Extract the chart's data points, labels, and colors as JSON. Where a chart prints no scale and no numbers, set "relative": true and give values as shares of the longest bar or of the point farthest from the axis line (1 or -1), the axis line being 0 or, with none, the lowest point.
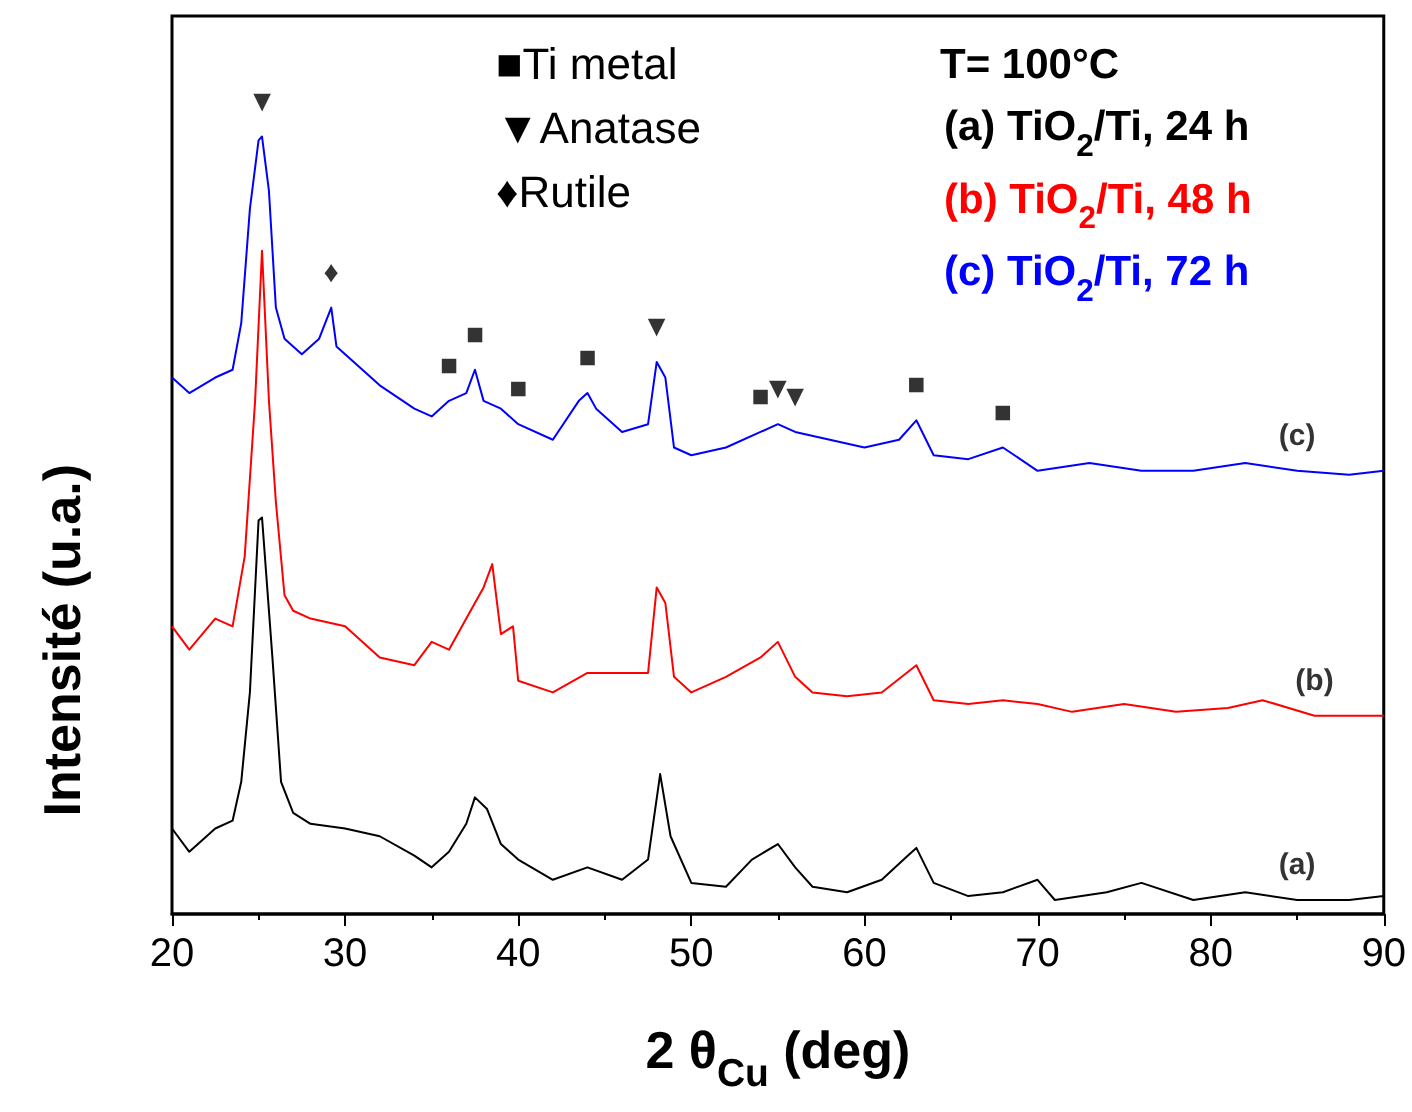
{
  "chart_data": {
    "type": "line",
    "relative": true,
    "xlabel": "2 θ$_{Cu}$ (deg)",
    "ylabel": "Intensité (u.a.)",
    "legend_title": "T= 100°C",
    "xlim": [
      20,
      90
    ],
    "xticks": [
      20,
      30,
      40,
      50,
      60,
      70,
      80,
      90
    ],
    "grid": false,
    "legend": "top right",
    "marker": "none",
    "line_style": "solid",
    "annotations": [
      "■Ti metal",
      "▼Anatase",
      "♦Rutile",
      {
        "text": "▼",
        "x": 25.2,
        "y": 1.0
      },
      {
        "text": "♦",
        "x": 29.2,
        "y": 0.78
      },
      {
        "text": "■",
        "x": 36,
        "y": 0.66
      },
      {
        "text": "■",
        "x": 37.5,
        "y": 0.7
      },
      {
        "text": "■",
        "x": 40,
        "y": 0.63
      },
      {
        "text": "■",
        "x": 44,
        "y": 0.67
      },
      {
        "text": "▼",
        "x": 48,
        "y": 0.71
      },
      {
        "text": "■",
        "x": 54,
        "y": 0.62
      },
      {
        "text": "▼",
        "x": 55,
        "y": 0.63
      },
      {
        "text": "▼",
        "x": 56,
        "y": 0.62
      },
      {
        "text": "■",
        "x": 63,
        "y": 0.635
      },
      {
        "text": "■",
        "x": 68,
        "y": 0.6
      },
      {
        "text": "(c)",
        "x": 85,
        "y": 0.57
      },
      {
        "text": "(b)",
        "x": 86,
        "y": 0.255
      },
      {
        "text": "(a)",
        "x": 85,
        "y": 0.018
      }
    ],
    "series": [
      {
        "name": "(a) TiO$_{2}$/Ti, 24 h",
        "color": "#000000",
        "x": [
          20,
          21,
          22.5,
          23.5,
          24,
          24.5,
          25,
          25.2,
          25.8,
          26.3,
          27,
          28,
          30,
          32,
          34,
          35,
          36,
          37,
          37.5,
          38.2,
          39,
          40,
          42,
          44,
          46,
          47.5,
          48.2,
          48.8,
          50,
          52,
          53.5,
          55,
          56,
          57,
          59,
          61,
          62.5,
          63,
          64,
          66,
          68,
          70,
          71,
          74,
          76,
          79,
          82,
          85,
          88,
          90
        ],
        "values": [
          0.11,
          0.08,
          0.11,
          0.12,
          0.17,
          0.285,
          0.506,
          0.51,
          0.33,
          0.17,
          0.13,
          0.116,
          0.11,
          0.1,
          0.075,
          0.06,
          0.08,
          0.116,
          0.15,
          0.135,
          0.09,
          0.07,
          0.044,
          0.06,
          0.044,
          0.07,
          0.18,
          0.1,
          0.04,
          0.035,
          0.07,
          0.09,
          0.06,
          0.035,
          0.028,
          0.044,
          0.075,
          0.085,
          0.04,
          0.023,
          0.028,
          0.044,
          0.018,
          0.028,
          0.04,
          0.018,
          0.028,
          0.018,
          0.018,
          0.023
        ]
      },
      {
        "name": "(b) TiO$_{2}$/Ti, 48 h",
        "color": "#ff0000",
        "x": [
          20,
          21,
          22.5,
          23.5,
          24.2,
          24.8,
          25.2,
          25.6,
          26,
          26.5,
          27,
          28,
          30,
          32,
          34,
          35,
          36,
          37,
          38,
          38.5,
          39,
          39.7,
          40,
          42,
          44,
          46,
          47.5,
          48,
          48.5,
          49,
          50,
          52,
          54,
          55,
          56,
          57,
          59,
          61,
          63,
          64,
          66,
          68,
          70,
          72,
          75,
          78,
          81,
          83,
          86,
          90
        ],
        "values": [
          0.37,
          0.34,
          0.38,
          0.37,
          0.46,
          0.66,
          0.853,
          0.66,
          0.53,
          0.41,
          0.39,
          0.38,
          0.37,
          0.33,
          0.32,
          0.35,
          0.34,
          0.38,
          0.42,
          0.45,
          0.36,
          0.37,
          0.3,
          0.285,
          0.31,
          0.31,
          0.31,
          0.42,
          0.4,
          0.305,
          0.285,
          0.305,
          0.33,
          0.35,
          0.305,
          0.285,
          0.28,
          0.285,
          0.32,
          0.275,
          0.27,
          0.275,
          0.27,
          0.26,
          0.27,
          0.26,
          0.265,
          0.275,
          0.255,
          0.255
        ]
      },
      {
        "name": "(c) TiO$_{2}$/Ti, 72 h",
        "color": "#0000ff",
        "x": [
          20,
          21,
          22.5,
          23.5,
          24,
          24.5,
          25,
          25.2,
          25.6,
          26,
          26.5,
          27.5,
          28.5,
          29.2,
          29.5,
          30.5,
          32,
          34,
          35,
          36,
          37,
          37.5,
          38,
          39,
          40,
          42,
          43.5,
          44,
          44.5,
          46,
          47.5,
          48,
          48.5,
          49,
          50,
          52,
          54,
          55,
          56,
          58,
          60,
          62,
          63,
          64,
          66,
          68,
          70,
          73,
          76,
          79,
          82,
          85,
          88,
          90
        ],
        "values": [
          0.69,
          0.67,
          0.69,
          0.7,
          0.76,
          0.907,
          0.995,
          1.0,
          0.93,
          0.78,
          0.74,
          0.72,
          0.74,
          0.78,
          0.73,
          0.71,
          0.68,
          0.65,
          0.64,
          0.66,
          0.67,
          0.7,
          0.66,
          0.65,
          0.63,
          0.61,
          0.66,
          0.67,
          0.65,
          0.62,
          0.63,
          0.71,
          0.69,
          0.6,
          0.59,
          0.6,
          0.62,
          0.63,
          0.62,
          0.61,
          0.6,
          0.61,
          0.635,
          0.59,
          0.585,
          0.6,
          0.57,
          0.58,
          0.57,
          0.57,
          0.58,
          0.57,
          0.565,
          0.57
        ]
      }
    ]
  }
}
